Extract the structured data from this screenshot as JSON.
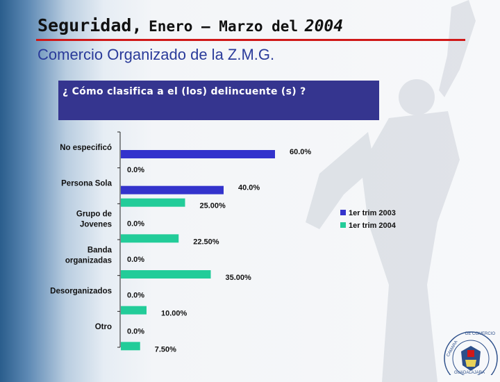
{
  "header": {
    "title_main": "Seguridad,",
    "title_rest": "Enero – Marzo del",
    "title_year": "2004",
    "subtitle": "Comercio Organizado de la Z.M.G.",
    "question": "¿ Cómo clasifica a el (los) delincuente (s) ?"
  },
  "colors": {
    "series_2003": "#3333cc",
    "series_2004": "#22cc99",
    "rule": "#d01818",
    "question_box": "#35358f"
  },
  "chart_data": {
    "type": "bar",
    "orientation": "horizontal",
    "categories": [
      [
        "No especificó"
      ],
      [
        "Persona Sola"
      ],
      [
        "Grupo de",
        "Jovenes"
      ],
      [
        "Banda",
        "organizadas"
      ],
      [
        "Desorganizados"
      ],
      [
        "Otro"
      ]
    ],
    "series": [
      {
        "name": "1er trim 2003",
        "values": [
          60.0,
          40.0,
          0.0,
          0.0,
          0.0,
          0.0
        ],
        "labels": [
          "60.0%",
          "40.0%",
          "0.0%",
          "0.0%",
          "0.0%",
          "0.0%"
        ]
      },
      {
        "name": "1er trim 2004",
        "values": [
          0.0,
          25.0,
          22.5,
          35.0,
          10.0,
          7.5
        ],
        "labels": [
          "0.0%",
          "25.00%",
          "22.50%",
          "35.00%",
          "10.00%",
          "7.50%"
        ]
      }
    ],
    "xlim": [
      0,
      100
    ],
    "grid": false,
    "legend_position": "right"
  },
  "seal": {
    "text": "CAMARA DE COMERCIO DE GUADALAJARA"
  }
}
